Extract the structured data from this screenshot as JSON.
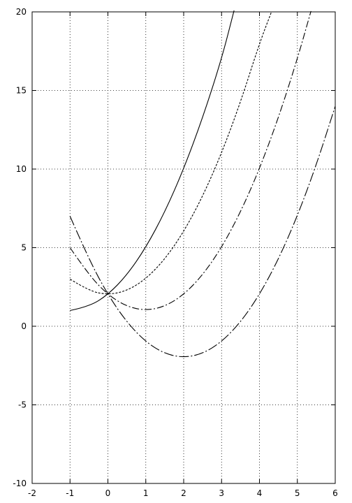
{
  "chart_data": {
    "type": "line",
    "title": "",
    "xlabel": "",
    "ylabel": "",
    "xlim": [
      -2,
      6
    ],
    "ylim": [
      -10,
      20
    ],
    "x_ticks": [
      -2,
      -1,
      0,
      1,
      2,
      3,
      4,
      5,
      6
    ],
    "y_ticks": [
      -10,
      -5,
      0,
      5,
      10,
      15,
      20
    ],
    "grid": true,
    "legend": "none",
    "line_color": "#000000",
    "series": [
      {
        "style": "solid",
        "x": [
          -1,
          -0.5,
          0,
          0.5,
          1,
          1.5,
          2,
          2.5,
          3,
          3.33
        ],
        "y": [
          1,
          1.25,
          2,
          3.25,
          5,
          7.25,
          10,
          13.25,
          17,
          20.09
        ]
      },
      {
        "style": "dotted",
        "x": [
          -1,
          -0.5,
          0,
          0.5,
          1,
          1.5,
          2,
          2.5,
          3,
          3.5,
          4,
          4.32
        ],
        "y": [
          3,
          2.25,
          2,
          2.25,
          3,
          4.25,
          6,
          8.25,
          11,
          14.25,
          18,
          20.02
        ]
      },
      {
        "style": "dash-dot",
        "x": [
          -1,
          -0.5,
          0,
          0.5,
          1,
          1.5,
          2,
          2.5,
          3,
          3.5,
          4,
          4.5,
          5,
          5.36
        ],
        "y": [
          5,
          3.25,
          2,
          1.25,
          1,
          1.25,
          2,
          3.25,
          5,
          7.25,
          10,
          13.25,
          17,
          20.05
        ]
      },
      {
        "style": "long-dash-dot",
        "x": [
          -1,
          -0.5,
          0,
          0.5,
          1,
          1.5,
          2,
          2.5,
          3,
          3.5,
          4,
          4.5,
          5,
          5.5,
          6
        ],
        "y": [
          7,
          4.25,
          2,
          0.25,
          -1,
          -1.75,
          -2,
          -1.75,
          -1,
          0.25,
          2,
          4.25,
          7,
          10.25,
          14
        ]
      }
    ]
  }
}
